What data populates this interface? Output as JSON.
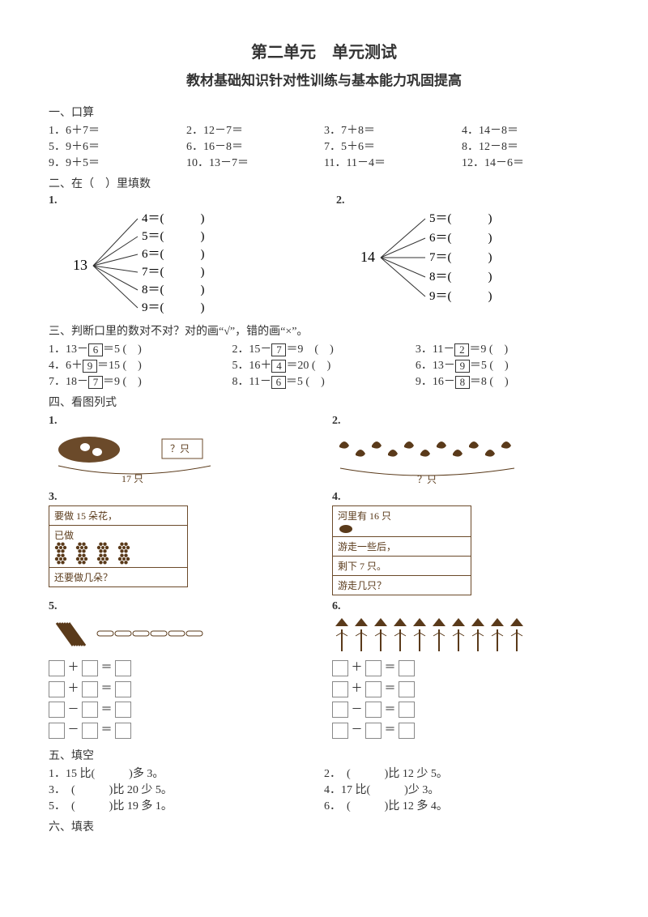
{
  "title1": "第二单元　单元测试",
  "title2": "教材基础知识针对性训练与基本能力巩固提高",
  "s1": {
    "head": "一、口算",
    "items": [
      [
        "1．6＋7＝",
        "2．12－7＝",
        "3．7＋8＝",
        "4．14－8＝"
      ],
      [
        "5．9＋6＝",
        "6．16－8＝",
        "7．5＋6＝",
        "8．12－8＝"
      ],
      [
        "9．9＋5＝",
        "10．13－7＝",
        "11．11－4＝",
        "12．14－6＝"
      ]
    ]
  },
  "s2": {
    "head": "二、在（　）里填数",
    "fan1": {
      "num": "1.",
      "root": "13",
      "rows": [
        "4＝(　　　)",
        "5＝(　　　)",
        "6＝(　　　)",
        "7＝(　　　)",
        "8＝(　　　)",
        "9＝(　　　)"
      ]
    },
    "fan2": {
      "num": "2.",
      "root": "14",
      "rows": [
        "5＝(　　　)",
        "6＝(　　　)",
        "7＝(　　　)",
        "8＝(　　　)",
        "9＝(　　　)"
      ]
    }
  },
  "s3": {
    "head": "三、判断口里的数对不对？对的画“√”，错的画“×”。",
    "rows": [
      [
        {
          "pre": "1．13－",
          "box": "6",
          "post": "＝5  (　)"
        },
        {
          "pre": "2．15－",
          "box": "7",
          "post": "＝9　(　)"
        },
        {
          "pre": "3．11－",
          "box": "2",
          "post": "＝9 (　)"
        }
      ],
      [
        {
          "pre": "4．6＋",
          "box": "9",
          "post": "＝15 (　)"
        },
        {
          "pre": "5．16＋",
          "box": "4",
          "post": "＝20 (　)"
        },
        {
          "pre": "6．13－",
          "box": "9",
          "post": "＝5 (　)"
        }
      ],
      [
        {
          "pre": "7．18－",
          "box": "7",
          "post": "＝9 (　)"
        },
        {
          "pre": "8．11－",
          "box": "6",
          "post": "＝5 (　)"
        },
        {
          "pre": "9．16－",
          "box": "8",
          "post": "＝8 (　)"
        }
      ]
    ]
  },
  "s4": {
    "head": "四、看图列式",
    "q1": {
      "num": "1.",
      "total": "17 只",
      "ask": "？只"
    },
    "q2": {
      "num": "2.",
      "ask": "？只"
    },
    "q3": {
      "num": "3.",
      "lines": [
        "要做 15 朵花，",
        "已做",
        "还要做几朵？"
      ]
    },
    "q4": {
      "num": "4.",
      "lines": [
        "河里有 16 只",
        "游走一些后，",
        "剩下 7 只。",
        "游走几只？"
      ]
    },
    "q5": {
      "num": "5."
    },
    "q6": {
      "num": "6."
    }
  },
  "s5": {
    "head": "五、填空",
    "rows": [
      [
        "1．15 比(　　　)多 3。",
        "2．　(　　　)比 12 少 5。"
      ],
      [
        "3．　(　　　)比 20 少 5。",
        "4．17 比(　　　)少 3。"
      ],
      [
        "5．　(　　　)比 19 多 1。",
        "6．　(　　　)比 12 多 4。"
      ]
    ]
  },
  "s6": {
    "head": "六、填表"
  },
  "colors": {
    "ink": "#5a3a1a",
    "line": "#333"
  }
}
